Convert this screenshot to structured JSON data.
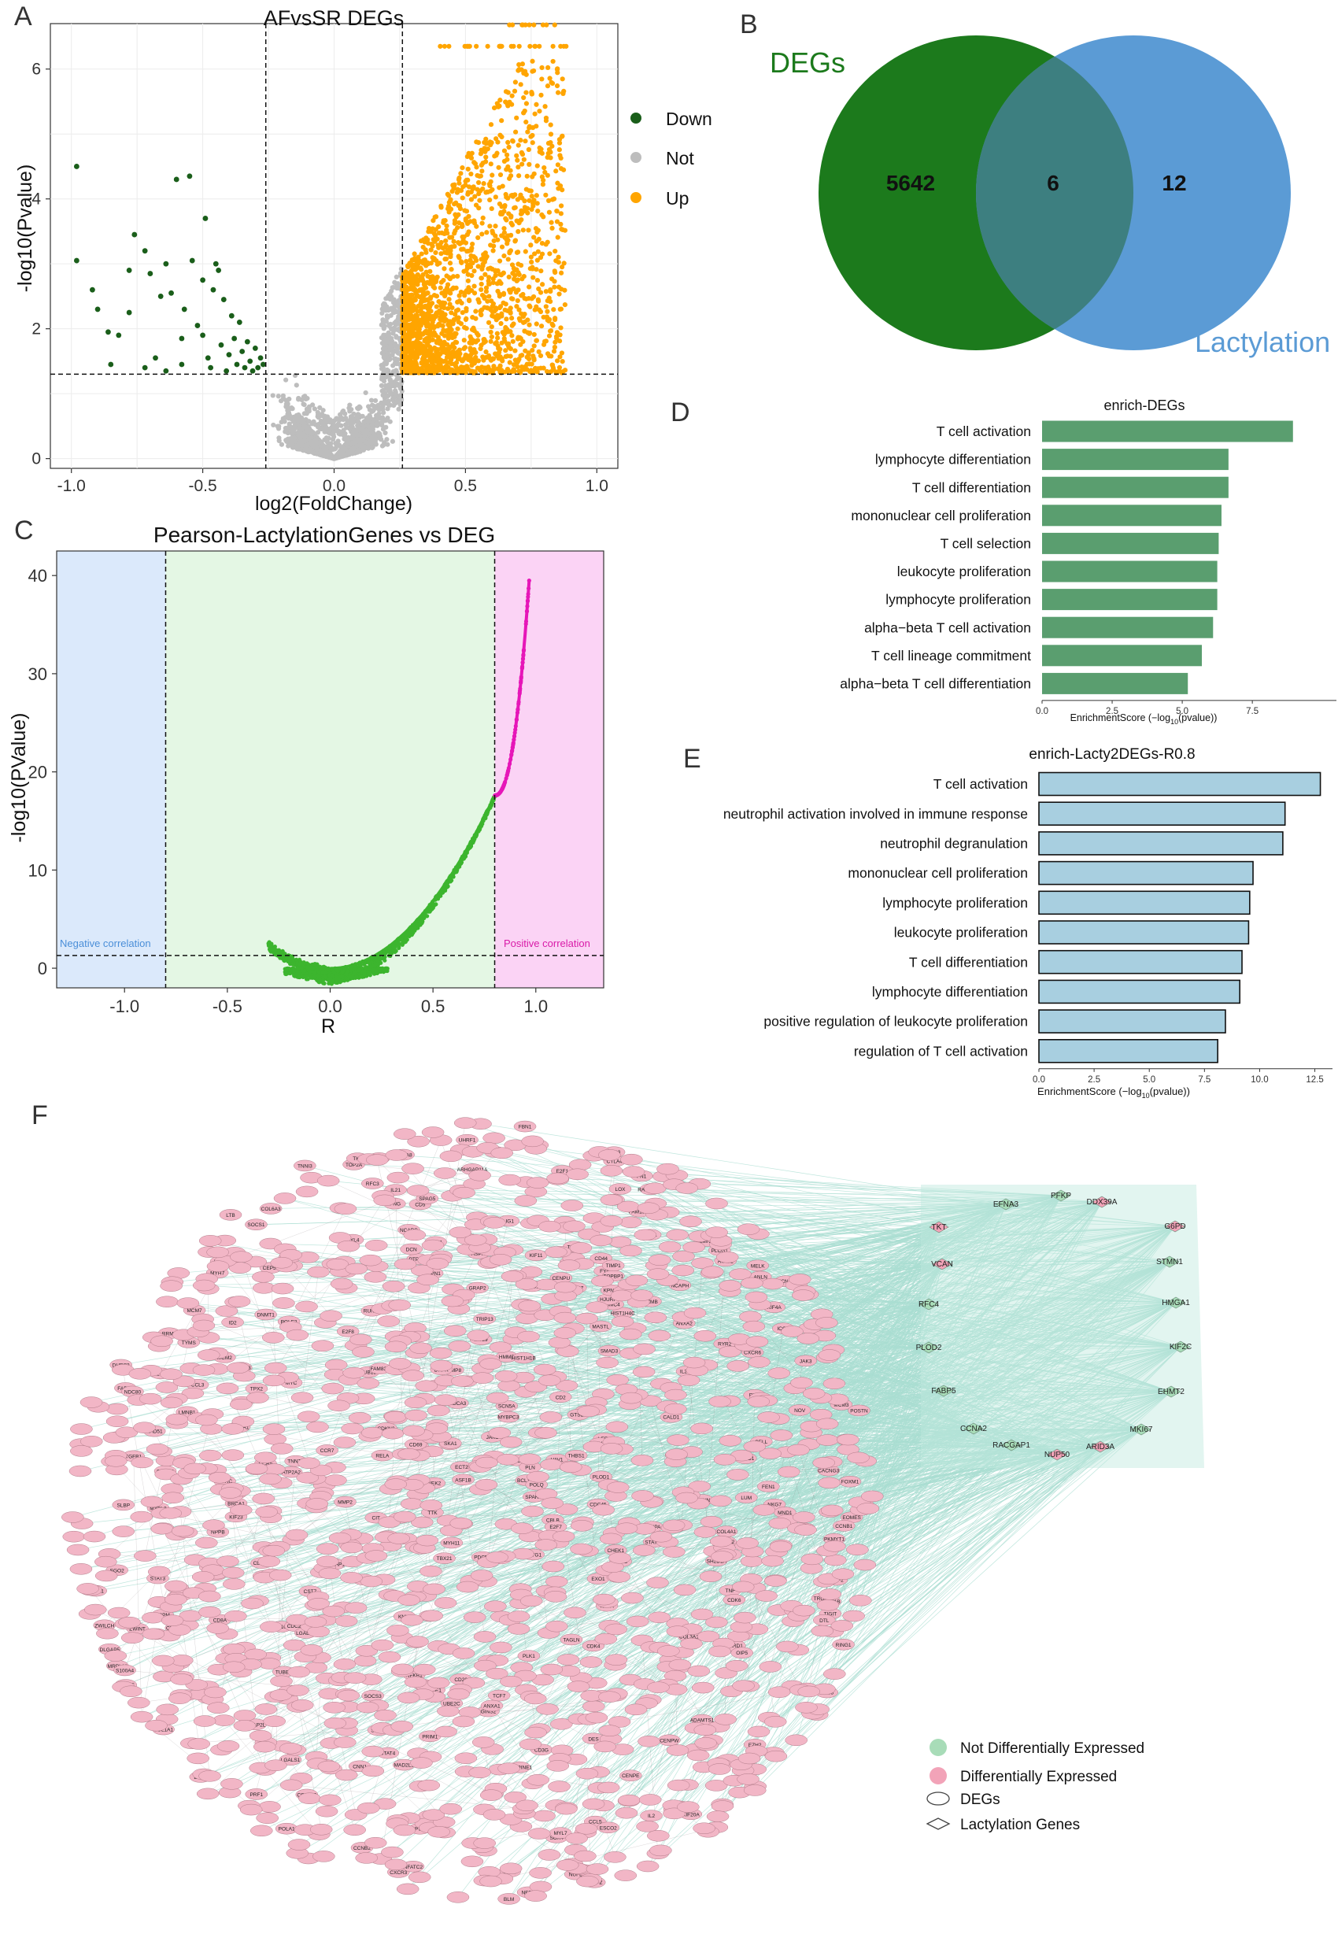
{
  "panels": {
    "A": "A",
    "B": "B",
    "C": "C",
    "D": "D",
    "E": "E",
    "F": "F"
  },
  "colors": {
    "down": "#1a5e1a",
    "not": "#bdbdbd",
    "up": "#ffa500",
    "venn_degs": "#1c7a1c",
    "venn_lact": "#5b9bd5",
    "overlap": "#3d7f80",
    "enrich_d": "#5a9e6f",
    "enrich_e": "#a8cfe0",
    "neg_band": "#dbe9fb",
    "mid_band": "#e4f7e4",
    "pos_band": "#fbd3f5",
    "curve_green": "#3cb52e",
    "curve_pink": "#e616b8",
    "node_pink": "#f2b6c6",
    "node_green": "#a8dcb8",
    "edge": "#a9ddd1"
  },
  "chart_data": [
    {
      "id": "A",
      "type": "scatter",
      "title": "AFvsSR  DEGs",
      "xlabel": "log2(FoldChange)",
      "ylabel": "-log10(Pvalue)",
      "xlim": [
        -1.08,
        1.08
      ],
      "ylim": [
        -0.15,
        6.7
      ],
      "xticks": [
        "-1.0",
        "-0.5",
        "0.0",
        "0.5",
        "1.0"
      ],
      "xtick_values": [
        -1.0,
        -0.5,
        0.0,
        0.5,
        1.0
      ],
      "yticks": [
        "0",
        "2",
        "4",
        "6"
      ],
      "ytick_values": [
        0,
        2,
        4,
        6
      ],
      "vlines": [
        -0.26,
        0.26
      ],
      "hline": 1.3,
      "legend": [
        {
          "name": "Down",
          "color": "#1a5e1a"
        },
        {
          "name": "Not",
          "color": "#bdbdbd"
        },
        {
          "name": "Up",
          "color": "#ffa500"
        }
      ],
      "legend_position": "right",
      "grid": true,
      "down_points": [
        [
          -0.98,
          4.5
        ],
        [
          -0.98,
          3.05
        ],
        [
          -0.92,
          2.6
        ],
        [
          -0.9,
          2.3
        ],
        [
          -0.86,
          1.95
        ],
        [
          -0.82,
          1.9
        ],
        [
          -0.78,
          2.25
        ],
        [
          -0.78,
          2.9
        ],
        [
          -0.76,
          3.45
        ],
        [
          -0.72,
          3.2
        ],
        [
          -0.7,
          2.85
        ],
        [
          -0.68,
          1.55
        ],
        [
          -0.66,
          2.5
        ],
        [
          -0.64,
          3.0
        ],
        [
          -0.62,
          2.55
        ],
        [
          -0.6,
          4.3
        ],
        [
          -0.58,
          1.85
        ],
        [
          -0.57,
          2.3
        ],
        [
          -0.55,
          4.35
        ],
        [
          -0.54,
          3.05
        ],
        [
          -0.52,
          2.05
        ],
        [
          -0.5,
          2.75
        ],
        [
          -0.49,
          3.7
        ],
        [
          -0.48,
          1.55
        ],
        [
          -0.46,
          2.6
        ],
        [
          -0.45,
          3.0
        ],
        [
          -0.43,
          1.75
        ],
        [
          -0.42,
          2.45
        ],
        [
          -0.41,
          1.35
        ],
        [
          -0.4,
          1.6
        ],
        [
          -0.38,
          1.85
        ],
        [
          -0.37,
          1.45
        ],
        [
          -0.35,
          1.65
        ],
        [
          -0.34,
          1.4
        ],
        [
          -0.32,
          1.5
        ],
        [
          -0.31,
          1.35
        ],
        [
          -0.3,
          1.7
        ],
        [
          -0.29,
          1.4
        ],
        [
          -0.28,
          1.55
        ],
        [
          -0.27,
          1.45
        ],
        [
          -0.44,
          2.9
        ],
        [
          -0.36,
          2.1
        ],
        [
          -0.33,
          1.8
        ],
        [
          -0.39,
          2.2
        ],
        [
          -0.5,
          1.9
        ],
        [
          -0.58,
          1.45
        ],
        [
          -0.64,
          1.35
        ],
        [
          -0.72,
          1.4
        ],
        [
          -0.85,
          1.45
        ],
        [
          -0.47,
          1.4
        ]
      ],
      "venn_note": ""
    },
    {
      "id": "B",
      "type": "venn",
      "sets": [
        {
          "name": "DEGs",
          "only": 5642
        },
        {
          "name": "Lactylation",
          "only": 12
        }
      ],
      "intersection": 6
    },
    {
      "id": "C",
      "type": "scatter",
      "title": "Pearson-LactylationGenes vs DEG",
      "xlabel": "R",
      "ylabel": "-log10(PValue)",
      "xlim": [
        -1.33,
        1.33
      ],
      "ylim": [
        -2,
        42.5
      ],
      "xticks": [
        "-1.0",
        "-0.5",
        "0.0",
        "0.5",
        "1.0"
      ],
      "xtick_values": [
        -1.0,
        -0.5,
        0.0,
        0.5,
        1.0
      ],
      "yticks": [
        "0",
        "10",
        "20",
        "30",
        "40"
      ],
      "ytick_values": [
        0,
        10,
        20,
        30,
        40
      ],
      "vlines": [
        -0.8,
        0.8
      ],
      "hline": 1.3,
      "band_labels": {
        "negative": "Negative correlation",
        "positive": "Positive correlation"
      },
      "curve_x_range": [
        -0.3,
        0.97
      ]
    },
    {
      "id": "D",
      "type": "bar",
      "orientation": "horizontal",
      "title": "enrich-DEGs",
      "xlabel": "EnrichmentScore (−log",
      "xlabel_sub": "10",
      "xlabel_tail": "(pvalue))",
      "xlim": [
        0,
        10.5
      ],
      "xticks": [
        "0.0",
        "2.5",
        "5.0",
        "7.5"
      ],
      "xtick_values": [
        0,
        2.5,
        5.0,
        7.5
      ],
      "categories": [
        "T cell activation",
        "lymphocyte differentiation",
        "T cell differentiation",
        "mononuclear cell proliferation",
        "T cell selection",
        "leukocyte proliferation",
        "lymphocyte proliferation",
        "alpha−beta T cell activation",
        "T cell lineage commitment",
        "alpha−beta T cell differentiation"
      ],
      "values": [
        8.95,
        6.65,
        6.65,
        6.4,
        6.3,
        6.25,
        6.25,
        6.1,
        5.7,
        5.2
      ]
    },
    {
      "id": "E",
      "type": "bar",
      "orientation": "horizontal",
      "title": "enrich-Lacty2DEGs-R0.8",
      "xlabel": "EnrichmentScore (−log",
      "xlabel_sub": "10",
      "xlabel_tail": "(pvalue))",
      "xlim": [
        0,
        13.3
      ],
      "xticks": [
        "0.0",
        "2.5",
        "5.0",
        "7.5",
        "10.0",
        "12.5"
      ],
      "xtick_values": [
        0,
        2.5,
        5.0,
        7.5,
        10.0,
        12.5
      ],
      "categories": [
        "T cell activation",
        "neutrophil activation involved in immune response",
        "neutrophil degranulation",
        "mononuclear cell proliferation",
        "lymphocyte proliferation",
        "leukocyte proliferation",
        "T cell differentiation",
        "lymphocyte differentiation",
        "positive regulation of leukocyte proliferation",
        "regulation of T cell activation"
      ],
      "values": [
        12.75,
        11.15,
        11.05,
        9.7,
        9.55,
        9.5,
        9.2,
        9.1,
        8.45,
        8.1
      ]
    }
  ],
  "network": {
    "lactylation_genes": [
      "PFKP",
      "EFNA3",
      "DDX39A",
      "TKT",
      "G6PD",
      "VCAN",
      "STMN1",
      "RFC4",
      "HMGA1",
      "PLOD2",
      "KIF2C",
      "FABP5",
      "EHMT2",
      "CCNA2",
      "MKI67",
      "RACGAP1",
      "NUP50",
      "ARID3A"
    ],
    "deg_labels": [
      "RING1",
      "BTG1",
      "MRPL13",
      "EGFR",
      "CACNG3",
      "FABP3",
      "FAM136A",
      "S100A2",
      "CDK4",
      "VAMP8",
      "SOX4",
      "LTB",
      "CD8A",
      "CD3G",
      "TUBB1",
      "FKBP1B",
      "PLAU",
      "RRM2",
      "TOP2A",
      "ASPN",
      "COL4A1",
      "FBN1",
      "MMP2",
      "PLOD1",
      "CYP1B1",
      "NOV",
      "CAPN1",
      "EZH2",
      "DHRS2",
      "ACTA2",
      "BIRC5",
      "TNF",
      "CCL5",
      "PTPRC",
      "LCK",
      "ZAP70",
      "ITK",
      "CD28",
      "CTLA4",
      "ICOS",
      "IL2RA",
      "GZMB",
      "PRF1",
      "NKG7",
      "CST7",
      "KLRD1",
      "CD2",
      "CD5",
      "CD6",
      "CD7",
      "LAT",
      "SH2D1A",
      "IL7R",
      "CCR7",
      "SELL",
      "TCF7",
      "LEF1",
      "BCL11B",
      "GATA3",
      "RORC",
      "FOXP3",
      "IKZF2",
      "CD247",
      "FYN",
      "VAV1",
      "PLCG1",
      "GRAP2",
      "LCP2",
      "PAG1",
      "CBLB",
      "CD69",
      "CD44",
      "RUNX3",
      "TBX21",
      "EOMES",
      "ID2",
      "PDCD1",
      "LAG3",
      "HAVCR2",
      "TIGIT",
      "CXCR3",
      "CXCR6",
      "CCR5",
      "CCL4",
      "CCL3",
      "IFNG",
      "IL2",
      "IL21",
      "IL10",
      "TGFB1",
      "SMAD3",
      "STAT1",
      "STAT3",
      "STAT4",
      "STAT5A",
      "JAK1",
      "JAK3",
      "SOCS1",
      "SOCS3",
      "NFATC1",
      "NFATC2",
      "NFKB1",
      "RELA",
      "MYC",
      "CCND1",
      "CDK6",
      "E2F1",
      "MCM2",
      "MCM3",
      "MCM7",
      "PCNA",
      "TYMS",
      "AURKA",
      "AURKB",
      "PLK1",
      "BUB1",
      "CDC20",
      "CENPF",
      "KIF11",
      "KIF20A",
      "TPX2",
      "NUSAP1",
      "PRC1",
      "UBE2C",
      "CKS2",
      "ZWINT",
      "TK1",
      "DLGAP5",
      "HMMR",
      "TTK",
      "NDC80",
      "NUF2",
      "SPC25",
      "CDCA8",
      "BRCA1",
      "RAD51",
      "FEN1",
      "LIG1",
      "POLE2",
      "GINS2",
      "ASF1B",
      "HIST1H4C",
      "H2AFZ",
      "TUBB",
      "TUBA1B",
      "STMN2",
      "LMNB1",
      "ANLN",
      "ECT2",
      "CIT",
      "KIF4A",
      "KIF23",
      "KIF14",
      "DEPDC1",
      "MELK",
      "PBK",
      "OIP5",
      "SKA1",
      "CENPE",
      "CENPA",
      "FOXM1",
      "MYBL2",
      "CDKN3",
      "CCNB1",
      "CCNB2",
      "CDK1",
      "WEE1",
      "CHEK1",
      "CLSPN",
      "DTL",
      "EXO1",
      "ESCO2",
      "NCAPG",
      "NCAPH",
      "SMC4",
      "TOP2B",
      "HIST1H1B",
      "ARHGAP11A",
      "DIAPH3",
      "ATAD2",
      "PTTG1",
      "ESPL1",
      "SGO1",
      "SGO2",
      "KNL1",
      "ZWILCH",
      "MAD2L1",
      "BUB1B",
      "CDC6",
      "CDC45",
      "ORC1",
      "POLA1",
      "PRIM1",
      "RFC3",
      "RFC5",
      "DHFR",
      "GMNN",
      "CHAF1A",
      "CHAF1B",
      "UHRF1",
      "DNMT1",
      "SLBP",
      "ATAD5",
      "RRM1",
      "TOPBP1",
      "MASTL",
      "GTSE1",
      "TRIP13",
      "FAM83D",
      "CKAP2L",
      "HJURP",
      "KIFC1",
      "SPAG5",
      "ASPM",
      "CEP55",
      "FANCI",
      "FANCD2",
      "BLM",
      "POLQ",
      "NEK2",
      "TROAP",
      "CDCA3",
      "CDCA5",
      "PSRC1",
      "KPNA2",
      "GPSM2",
      "PLK4",
      "STIL",
      "CENPU",
      "CENPW",
      "PKMYT1",
      "E2F8",
      "E2F7",
      "MND1",
      "HELLS",
      "LMNB2",
      "RAD51AP1",
      "SHCBP1",
      "PIF1",
      "ADAMTS1",
      "LGALS3",
      "PLAUR",
      "SERPINE1",
      "THBS1",
      "TIMP1",
      "LOX",
      "POSTN",
      "FN1",
      "SPARC",
      "COL1A1",
      "COL1A2",
      "COL3A1",
      "COL5A1",
      "COL6A3",
      "FBLN1",
      "DCN",
      "LUM",
      "VIM",
      "S100A4",
      "S100A6",
      "ANXA1",
      "ANXA2",
      "LGALS1",
      "CALD1",
      "TAGLN",
      "MYL9",
      "TPM2",
      "CNN1",
      "DES",
      "MYH11",
      "LMOD1",
      "SMTN",
      "PLN",
      "ATP2A2",
      "RYR2",
      "KCNJ2",
      "SCN5A",
      "GJA1",
      "NPPA",
      "NPPB",
      "MYL7",
      "MYL4",
      "MYH6",
      "MYH7",
      "TNNT2",
      "TNNI3",
      "ACTC1",
      "TTN",
      "NEBL",
      "MYBPC3"
    ]
  }
}
